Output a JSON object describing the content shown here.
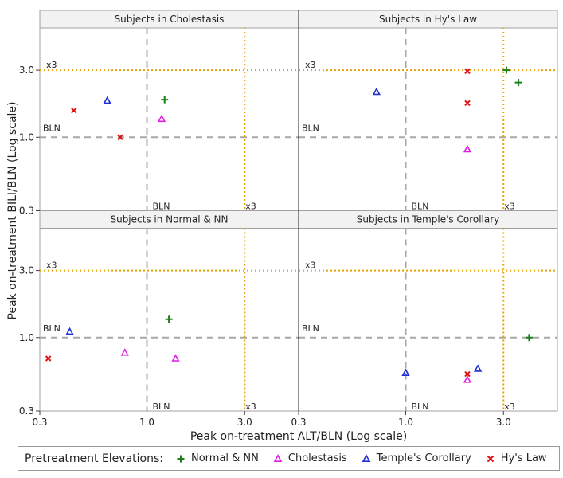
{
  "chart_data": {
    "type": "scatter",
    "x_scale": "log",
    "y_scale": "log",
    "xlim": [
      0.3,
      5.5
    ],
    "ylim": [
      0.3,
      6.0
    ],
    "xlabel": "Peak on-treatment ALT/BLN (Log scale)",
    "ylabel": "Peak on-treatment BILI/BLN (Log scale)",
    "x_ticks": [
      {
        "value": 0.3,
        "label": "0.3"
      },
      {
        "value": 1.0,
        "label": "1.0"
      },
      {
        "value": 3.0,
        "label": "3.0"
      }
    ],
    "y_ticks": [
      {
        "value": 0.3,
        "label": "0.3"
      },
      {
        "value": 1.0,
        "label": "1.0"
      },
      {
        "value": 3.0,
        "label": "3.0"
      }
    ],
    "ref_lines": {
      "bln_value": 1.0,
      "bln_label": "BLN",
      "bln_color": "#a8a8a8",
      "x3_value": 3.0,
      "x3_label": "x3",
      "x3_color": "#e5a50a"
    },
    "legend": {
      "title": "Pretreatment Elevations:",
      "placement": "bottom"
    },
    "groups": [
      {
        "name": "Normal & NN",
        "marker": "plus",
        "color": "#1a7f1a"
      },
      {
        "name": "Cholestasis",
        "marker": "triangle",
        "color": "#e020e0"
      },
      {
        "name": "Temple's Corollary",
        "marker": "triangle",
        "color": "#1f2fd6"
      },
      {
        "name": "Hy's Law",
        "marker": "x",
        "color": "#e01010"
      }
    ],
    "panels": [
      {
        "title": "Subjects in Cholestasis",
        "points": [
          {
            "group": "Normal & NN",
            "x": 1.22,
            "y": 1.85
          },
          {
            "group": "Cholestasis",
            "x": 1.18,
            "y": 1.35
          },
          {
            "group": "Temple's Corollary",
            "x": 0.64,
            "y": 1.82
          },
          {
            "group": "Hy's Law",
            "x": 0.44,
            "y": 1.55
          },
          {
            "group": "Hy's Law",
            "x": 0.74,
            "y": 1.0
          }
        ]
      },
      {
        "title": "Subjects in Hy's Law",
        "points": [
          {
            "group": "Normal & NN",
            "x": 3.1,
            "y": 3.0
          },
          {
            "group": "Normal & NN",
            "x": 3.55,
            "y": 2.45
          },
          {
            "group": "Cholestasis",
            "x": 2.0,
            "y": 0.82
          },
          {
            "group": "Temple's Corollary",
            "x": 0.72,
            "y": 2.1
          },
          {
            "group": "Hy's Law",
            "x": 2.0,
            "y": 2.95
          },
          {
            "group": "Hy's Law",
            "x": 2.0,
            "y": 1.75
          }
        ]
      },
      {
        "title": "Subjects in Normal & NN",
        "points": [
          {
            "group": "Normal & NN",
            "x": 1.28,
            "y": 1.35
          },
          {
            "group": "Cholestasis",
            "x": 0.78,
            "y": 0.78
          },
          {
            "group": "Cholestasis",
            "x": 1.38,
            "y": 0.71
          },
          {
            "group": "Temple's Corollary",
            "x": 0.42,
            "y": 1.1
          },
          {
            "group": "Hy's Law",
            "x": 0.33,
            "y": 0.71
          }
        ]
      },
      {
        "title": "Subjects in Temple's Corollary",
        "points": [
          {
            "group": "Normal & NN",
            "x": 4.0,
            "y": 1.0
          },
          {
            "group": "Cholestasis",
            "x": 2.0,
            "y": 0.5
          },
          {
            "group": "Temple's Corollary",
            "x": 1.0,
            "y": 0.56
          },
          {
            "group": "Temple's Corollary",
            "x": 2.25,
            "y": 0.6
          },
          {
            "group": "Hy's Law",
            "x": 2.0,
            "y": 0.55
          }
        ]
      }
    ]
  }
}
